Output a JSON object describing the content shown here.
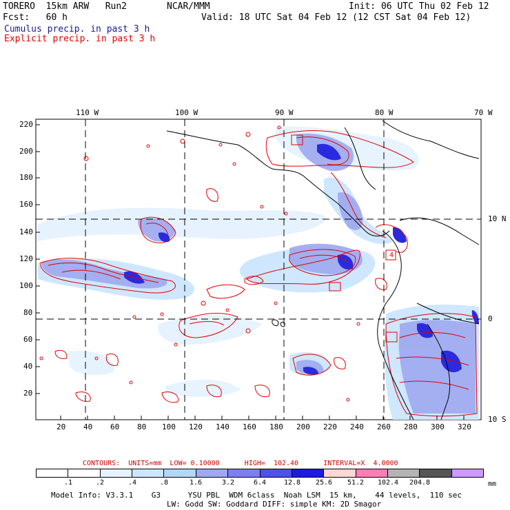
{
  "header": {
    "model": "TORERO  15km ARW   Run2",
    "org": "NCAR/MMM",
    "init": "Init: 06 UTC Thu 02 Feb 12",
    "fcst": "Fcst:   60 h",
    "valid": "Valid: 18 UTC Sat 04 Feb 12 (12 CST Sat 04 Feb 12)",
    "field1": "Cumulus precip. in past 3 h",
    "field2": "Explicit precip. in past 3 h",
    "field1_color": "#1a1a8c",
    "field2_color": "#e00000"
  },
  "map": {
    "lon_labels": [
      "110 W",
      "100 W",
      "90 W",
      "80 W",
      "70 W"
    ],
    "lat_labels_right": [
      "10 N",
      "0",
      "10 S"
    ],
    "y_ticks": [
      "220",
      "200",
      "180",
      "160",
      "140",
      "120",
      "100",
      "80",
      "60",
      "40",
      "20"
    ],
    "x_ticks": [
      "20",
      "40",
      "60",
      "80",
      "100",
      "120",
      "140",
      "160",
      "180",
      "200",
      "220",
      "240",
      "260",
      "280",
      "300",
      "320"
    ],
    "box_label": "4"
  },
  "contours": {
    "line": "CONTOURS:  UNITS=mm  LOW= 0.10000      HIGH=  102.40      INTERVAL=X  4.0000",
    "color": "#cc0000"
  },
  "legend": {
    "values": [
      ".1",
      ".2",
      ".4",
      ".8",
      "1.6",
      "3.2",
      "6.4",
      "12.8",
      "25.6",
      "51.2",
      "102.4",
      "204.8"
    ],
    "unit": "mm",
    "colors": [
      "#ffffff",
      "#ffffff",
      "#e6f2ff",
      "#cce6ff",
      "#b3d7f7",
      "#9fa8f0",
      "#7b7ff0",
      "#4f52e8",
      "#1c1cdc",
      "#ffd6d6",
      "#f77fb4",
      "#b4b4b4",
      "#555555",
      "#cc99ff"
    ]
  },
  "footer": {
    "line1": "Model Info: V3.3.1    G3      YSU PBL  WDM 6class  Noah LSM  15 km,    44 levels,  110 sec",
    "line2": "LW: Godd SW: Goddard DIFF: simple KM: 2D Smagor"
  }
}
